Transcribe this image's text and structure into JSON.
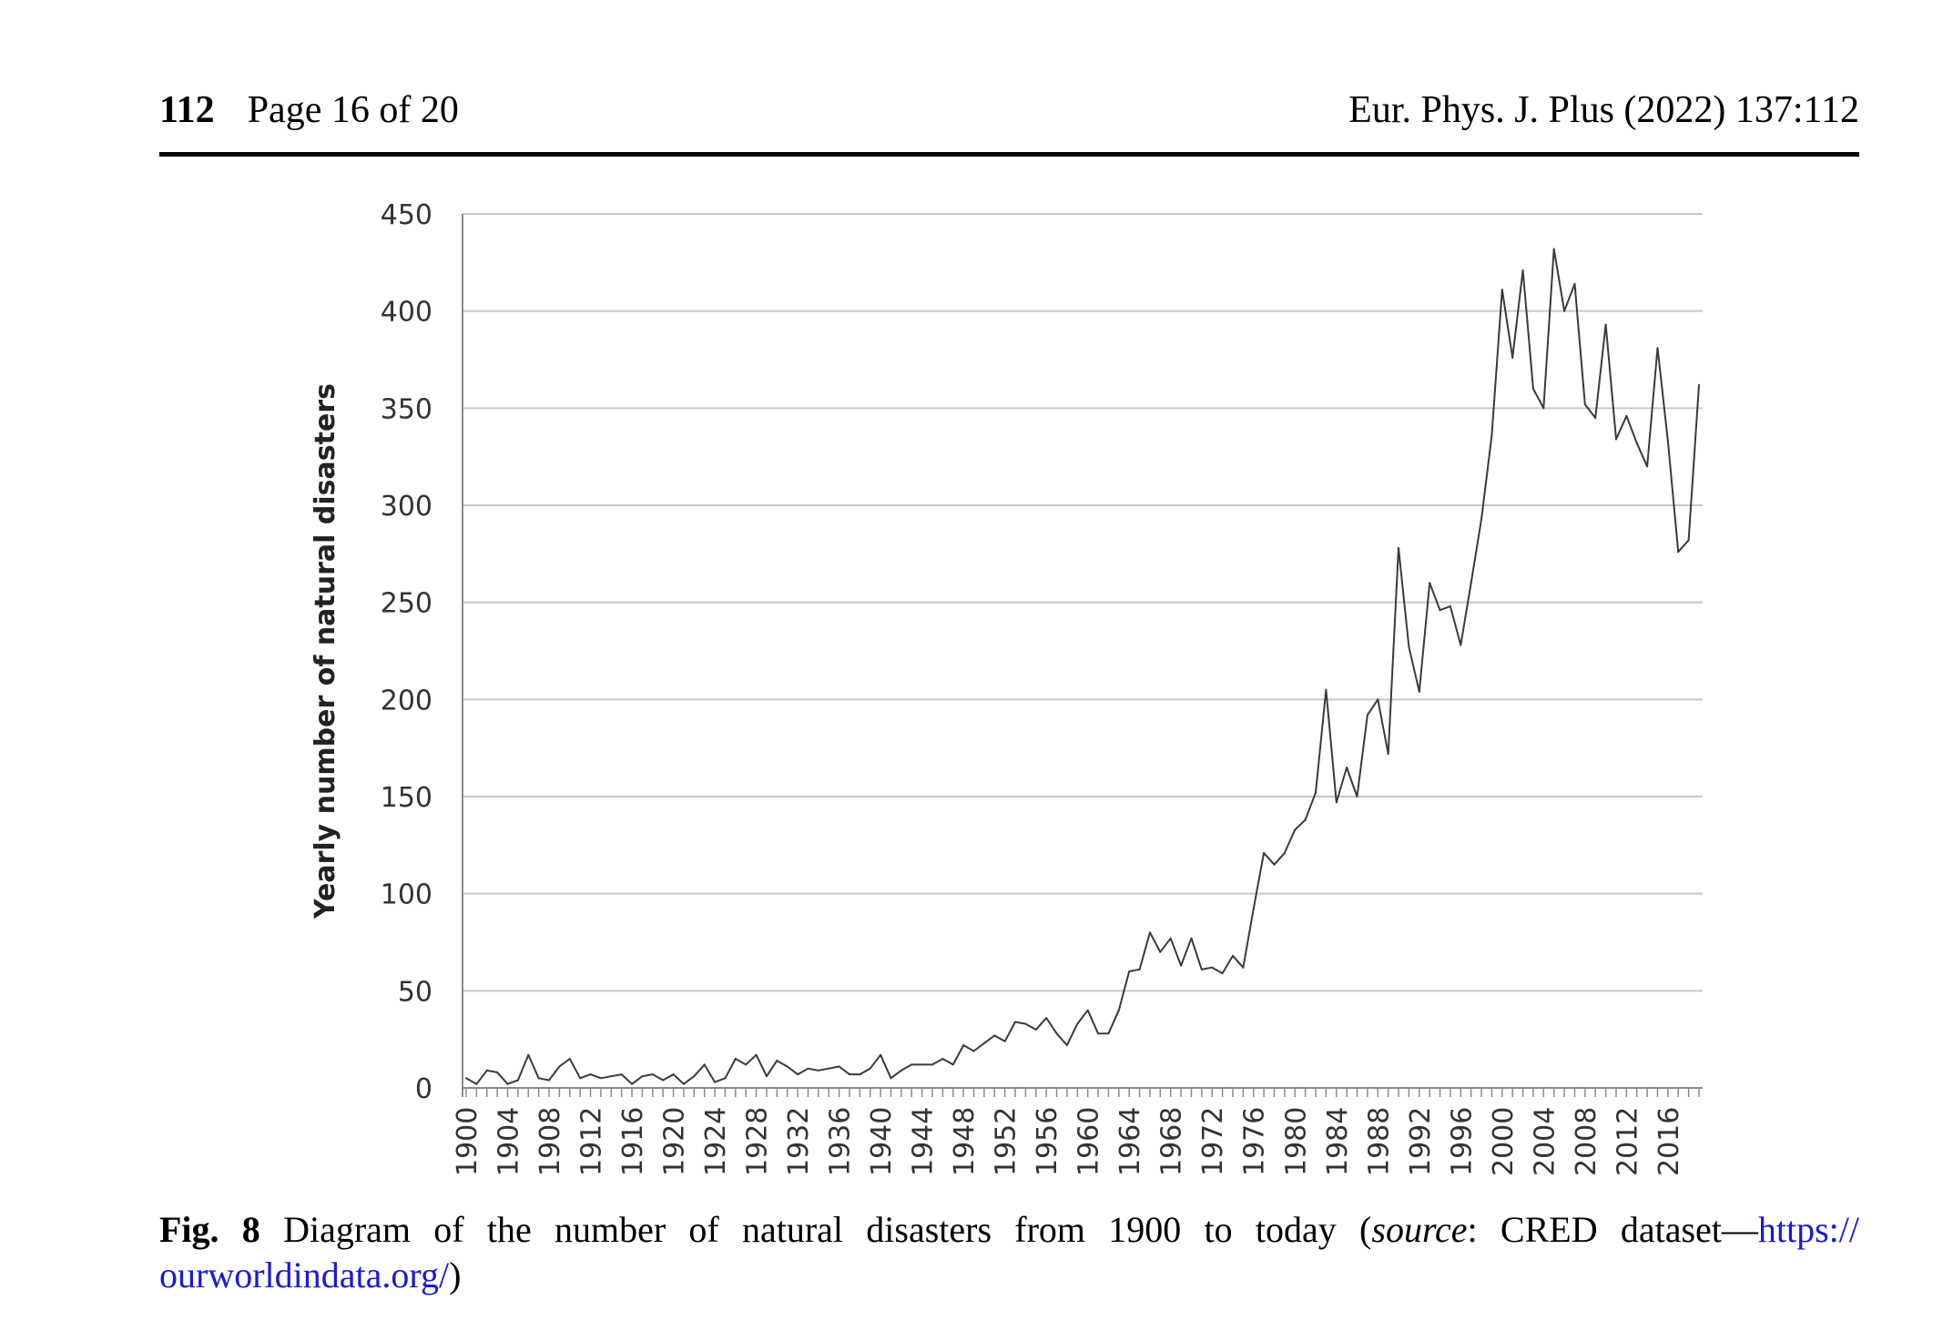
{
  "header": {
    "page_number": "112",
    "page_of": "Page 16 of 20",
    "journal": "Eur. Phys. J. Plus (2022) 137:112"
  },
  "caption": {
    "label": "Fig. 8",
    "text": "Diagram of the number of natural disasters from 1900 to today (",
    "source_word": "source",
    "source_text": ": CRED dataset—",
    "link_part1": "https://",
    "link_part2": "ourworldindata.org/",
    "close": ")"
  },
  "chart_data": {
    "type": "line",
    "title": "",
    "xlabel": "",
    "ylabel": "Yearly number of natural disasters",
    "ylim": [
      0,
      450
    ],
    "yticks": [
      0,
      50,
      100,
      150,
      200,
      250,
      300,
      350,
      400,
      450
    ],
    "xtick_labels": [
      "1900",
      "1904",
      "1908",
      "1912",
      "1916",
      "1920",
      "1924",
      "1928",
      "1932",
      "1936",
      "1940",
      "1944",
      "1948",
      "1952",
      "1956",
      "1960",
      "1964",
      "1968",
      "1972",
      "1976",
      "1980",
      "1984",
      "1988",
      "1992",
      "1996",
      "2000",
      "2004",
      "2008",
      "2012",
      "2016"
    ],
    "grid": true,
    "line_color": "#3a3a3a",
    "x": [
      1900,
      1901,
      1902,
      1903,
      1904,
      1905,
      1906,
      1907,
      1908,
      1909,
      1910,
      1911,
      1912,
      1913,
      1914,
      1915,
      1916,
      1917,
      1918,
      1919,
      1920,
      1921,
      1922,
      1923,
      1924,
      1925,
      1926,
      1927,
      1928,
      1929,
      1930,
      1931,
      1932,
      1933,
      1934,
      1935,
      1936,
      1937,
      1938,
      1939,
      1940,
      1941,
      1942,
      1943,
      1944,
      1945,
      1946,
      1947,
      1948,
      1949,
      1950,
      1951,
      1952,
      1953,
      1954,
      1955,
      1956,
      1957,
      1958,
      1959,
      1960,
      1961,
      1962,
      1963,
      1964,
      1965,
      1966,
      1967,
      1968,
      1969,
      1970,
      1971,
      1972,
      1973,
      1974,
      1975,
      1976,
      1977,
      1978,
      1979,
      1980,
      1981,
      1982,
      1983,
      1984,
      1985,
      1986,
      1987,
      1988,
      1989,
      1990,
      1991,
      1992,
      1993,
      1994,
      1995,
      1996,
      1997,
      1998,
      1999,
      2000,
      2001,
      2002,
      2003,
      2004,
      2005,
      2006,
      2007,
      2008,
      2009,
      2010,
      2011,
      2012,
      2013,
      2014,
      2015,
      2016,
      2017,
      2018,
      2019
    ],
    "series": [
      {
        "values": [
          5,
          2,
          9,
          8,
          2,
          4,
          17,
          5,
          4,
          11,
          15,
          5,
          7,
          5,
          6,
          7,
          2,
          6,
          7,
          4,
          7,
          2,
          6,
          12,
          3,
          5,
          15,
          12,
          17,
          6,
          14,
          11,
          7,
          10,
          9,
          10,
          11,
          7,
          7,
          10,
          17,
          5,
          9,
          12,
          12,
          12,
          15,
          12,
          22,
          19,
          23,
          27,
          24,
          34,
          33,
          30,
          36,
          28,
          22,
          33,
          40,
          28,
          28,
          40,
          60,
          61,
          80,
          70,
          77,
          63,
          77,
          61,
          62,
          59,
          68,
          62,
          92,
          121,
          115,
          121,
          133,
          138,
          152,
          205,
          147,
          165,
          150,
          192,
          200,
          172,
          278,
          227,
          204,
          260,
          246,
          248,
          228,
          260,
          293,
          336,
          411,
          376,
          421,
          360,
          350,
          432,
          400,
          414,
          352,
          345,
          393,
          334,
          346,
          332,
          320,
          381,
          333,
          276,
          282,
          362
        ]
      }
    ]
  }
}
